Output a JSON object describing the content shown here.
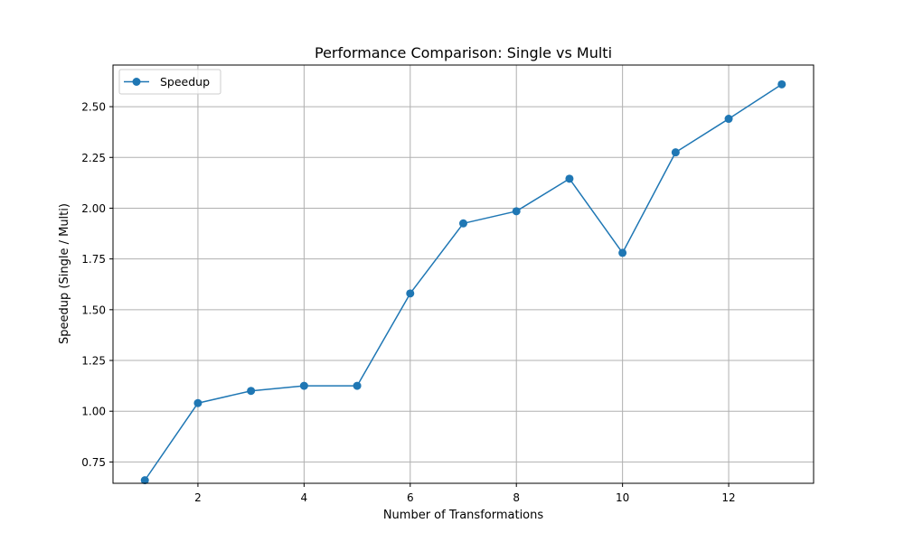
{
  "chart_data": {
    "type": "line",
    "title": "Performance Comparison: Single vs Multi",
    "xlabel": "Number of Transformations",
    "ylabel": "Speedup (Single / Multi)",
    "xlim": [
      0.4,
      13.6
    ],
    "ylim": [
      0.645,
      2.705
    ],
    "xticks": [
      2,
      4,
      6,
      8,
      10,
      12
    ],
    "yticks": [
      0.75,
      1.0,
      1.25,
      1.5,
      1.75,
      2.0,
      2.25,
      2.5
    ],
    "xtick_labels": [
      "2",
      "4",
      "6",
      "8",
      "10",
      "12"
    ],
    "ytick_labels": [
      "0.75",
      "1.00",
      "1.25",
      "1.50",
      "1.75",
      "2.00",
      "2.25",
      "2.50"
    ],
    "grid": true,
    "legend_position": "top-left",
    "series": [
      {
        "name": "Speedup",
        "color": "#1f77b4",
        "marker": "circle",
        "x": [
          1,
          2,
          3,
          4,
          5,
          6,
          7,
          8,
          9,
          10,
          11,
          12,
          13
        ],
        "y": [
          0.66,
          1.04,
          1.1,
          1.125,
          1.125,
          1.58,
          1.925,
          1.985,
          2.145,
          1.78,
          2.275,
          2.44,
          2.61
        ]
      }
    ]
  }
}
